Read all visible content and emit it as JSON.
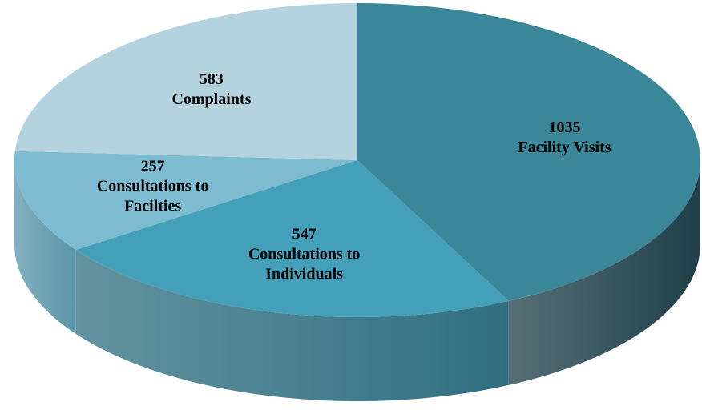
{
  "chart_data": {
    "type": "pie3d",
    "categories": [
      "Facility Visits",
      "Consultations to Individuals",
      "Consultations to Facilties",
      "Complaints"
    ],
    "values": [
      1035,
      547,
      257,
      583
    ],
    "colors": [
      "#3a8799",
      "#449fb8",
      "#7dbcd0",
      "#b5d3de"
    ],
    "side_colors": [
      "#1e3f49",
      "#2f6f80",
      "#5a96a8",
      "#8fb3c0"
    ]
  }
}
